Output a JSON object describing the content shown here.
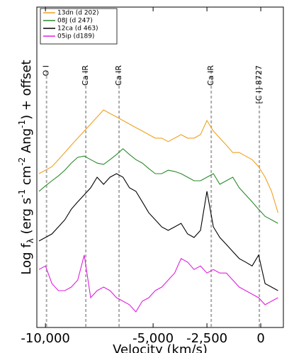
{
  "chart_data": {
    "type": "line",
    "xlabel": "Velocity (km/s)",
    "ylabel": [
      "Log f",
      "λ",
      " (erg s",
      "-1",
      " cm",
      "-2",
      " Ang",
      "-1",
      ") + offset"
    ],
    "xlim": [
      -10400,
      1050
    ],
    "ylim": [
      0,
      100
    ],
    "xticks": [
      {
        "value": -10000,
        "label": "-10,000"
      },
      {
        "value": -5000,
        "label": "-5,000"
      },
      {
        "value": -2500,
        "label": "-2,500"
      },
      0
    ],
    "annotations": [
      {
        "text": "O I",
        "x": -9950
      },
      {
        "text": "Ca IR",
        "x": -8125
      },
      {
        "text": "Ca IR",
        "x": -6580
      },
      {
        "text": "Ca IR",
        "x": -2300
      },
      {
        "text": "[C I] 8727",
        "x": -65
      }
    ],
    "legend": "upper left",
    "x": [
      -10300,
      -10000,
      -9700,
      -9400,
      -9100,
      -8800,
      -8500,
      -8200,
      -7900,
      -7600,
      -7300,
      -7000,
      -6700,
      -6400,
      -6100,
      -5800,
      -5500,
      -5200,
      -4900,
      -4600,
      -4300,
      -4000,
      -3700,
      -3400,
      -3100,
      -2800,
      -2500,
      -2200,
      -1900,
      -1600,
      -1300,
      -1000,
      -700,
      -400,
      -100,
      200,
      500,
      800
    ],
    "series": [
      {
        "name": "13dn (d 202)",
        "color": "#f0a020",
        "values": [
          48.0,
          49.1,
          50.2,
          52.4,
          54.6,
          56.9,
          59.1,
          61.3,
          63.5,
          65.7,
          67.9,
          66.8,
          65.7,
          64.6,
          63.5,
          62.4,
          61.3,
          60.2,
          59.1,
          59.1,
          58.0,
          59.1,
          60.2,
          59.1,
          59.1,
          60.2,
          64.6,
          61.3,
          59.1,
          56.9,
          54.6,
          54.6,
          53.5,
          52.4,
          50.2,
          46.9,
          42.5,
          35.8
        ]
      },
      {
        "name": "08J (d 247)",
        "color": "#2a8a2a",
        "values": [
          42.5,
          44.2,
          45.8,
          47.3,
          49.1,
          51.3,
          53.1,
          53.5,
          52.4,
          51.3,
          50.9,
          52.4,
          54.0,
          55.8,
          54.0,
          52.4,
          51.3,
          49.6,
          48.0,
          48.0,
          49.1,
          48.7,
          48.0,
          46.9,
          45.8,
          45.8,
          46.9,
          48.0,
          44.7,
          45.8,
          46.9,
          43.6,
          41.4,
          39.2,
          36.9,
          34.7,
          33.6,
          32.5
        ]
      },
      {
        "name": "12ca (d 463)",
        "color": "#000000",
        "values": [
          27.0,
          28.1,
          29.2,
          31.4,
          33.6,
          36.9,
          39.2,
          41.4,
          43.6,
          46.9,
          44.7,
          46.9,
          48.0,
          46.9,
          43.6,
          42.5,
          39.2,
          35.8,
          33.6,
          31.4,
          30.3,
          31.4,
          32.5,
          29.2,
          28.1,
          30.3,
          42.5,
          31.4,
          28.1,
          25.9,
          23.7,
          21.5,
          20.4,
          19.2,
          22.6,
          13.7,
          12.6,
          11.5
        ]
      },
      {
        "name": "05ip (d189)",
        "color": "#e020e0",
        "values": [
          18.1,
          19.2,
          13.7,
          11.5,
          11.5,
          12.6,
          14.8,
          22.6,
          9.3,
          11.5,
          12.6,
          11.5,
          9.3,
          8.2,
          7.1,
          4.9,
          8.2,
          9.3,
          11.5,
          12.6,
          14.8,
          17.0,
          21.5,
          20.4,
          18.1,
          19.2,
          17.0,
          18.1,
          17.0,
          17.0,
          14.8,
          12.6,
          11.5,
          10.4,
          9.3,
          7.1,
          8.2,
          9.3
        ]
      }
    ]
  }
}
